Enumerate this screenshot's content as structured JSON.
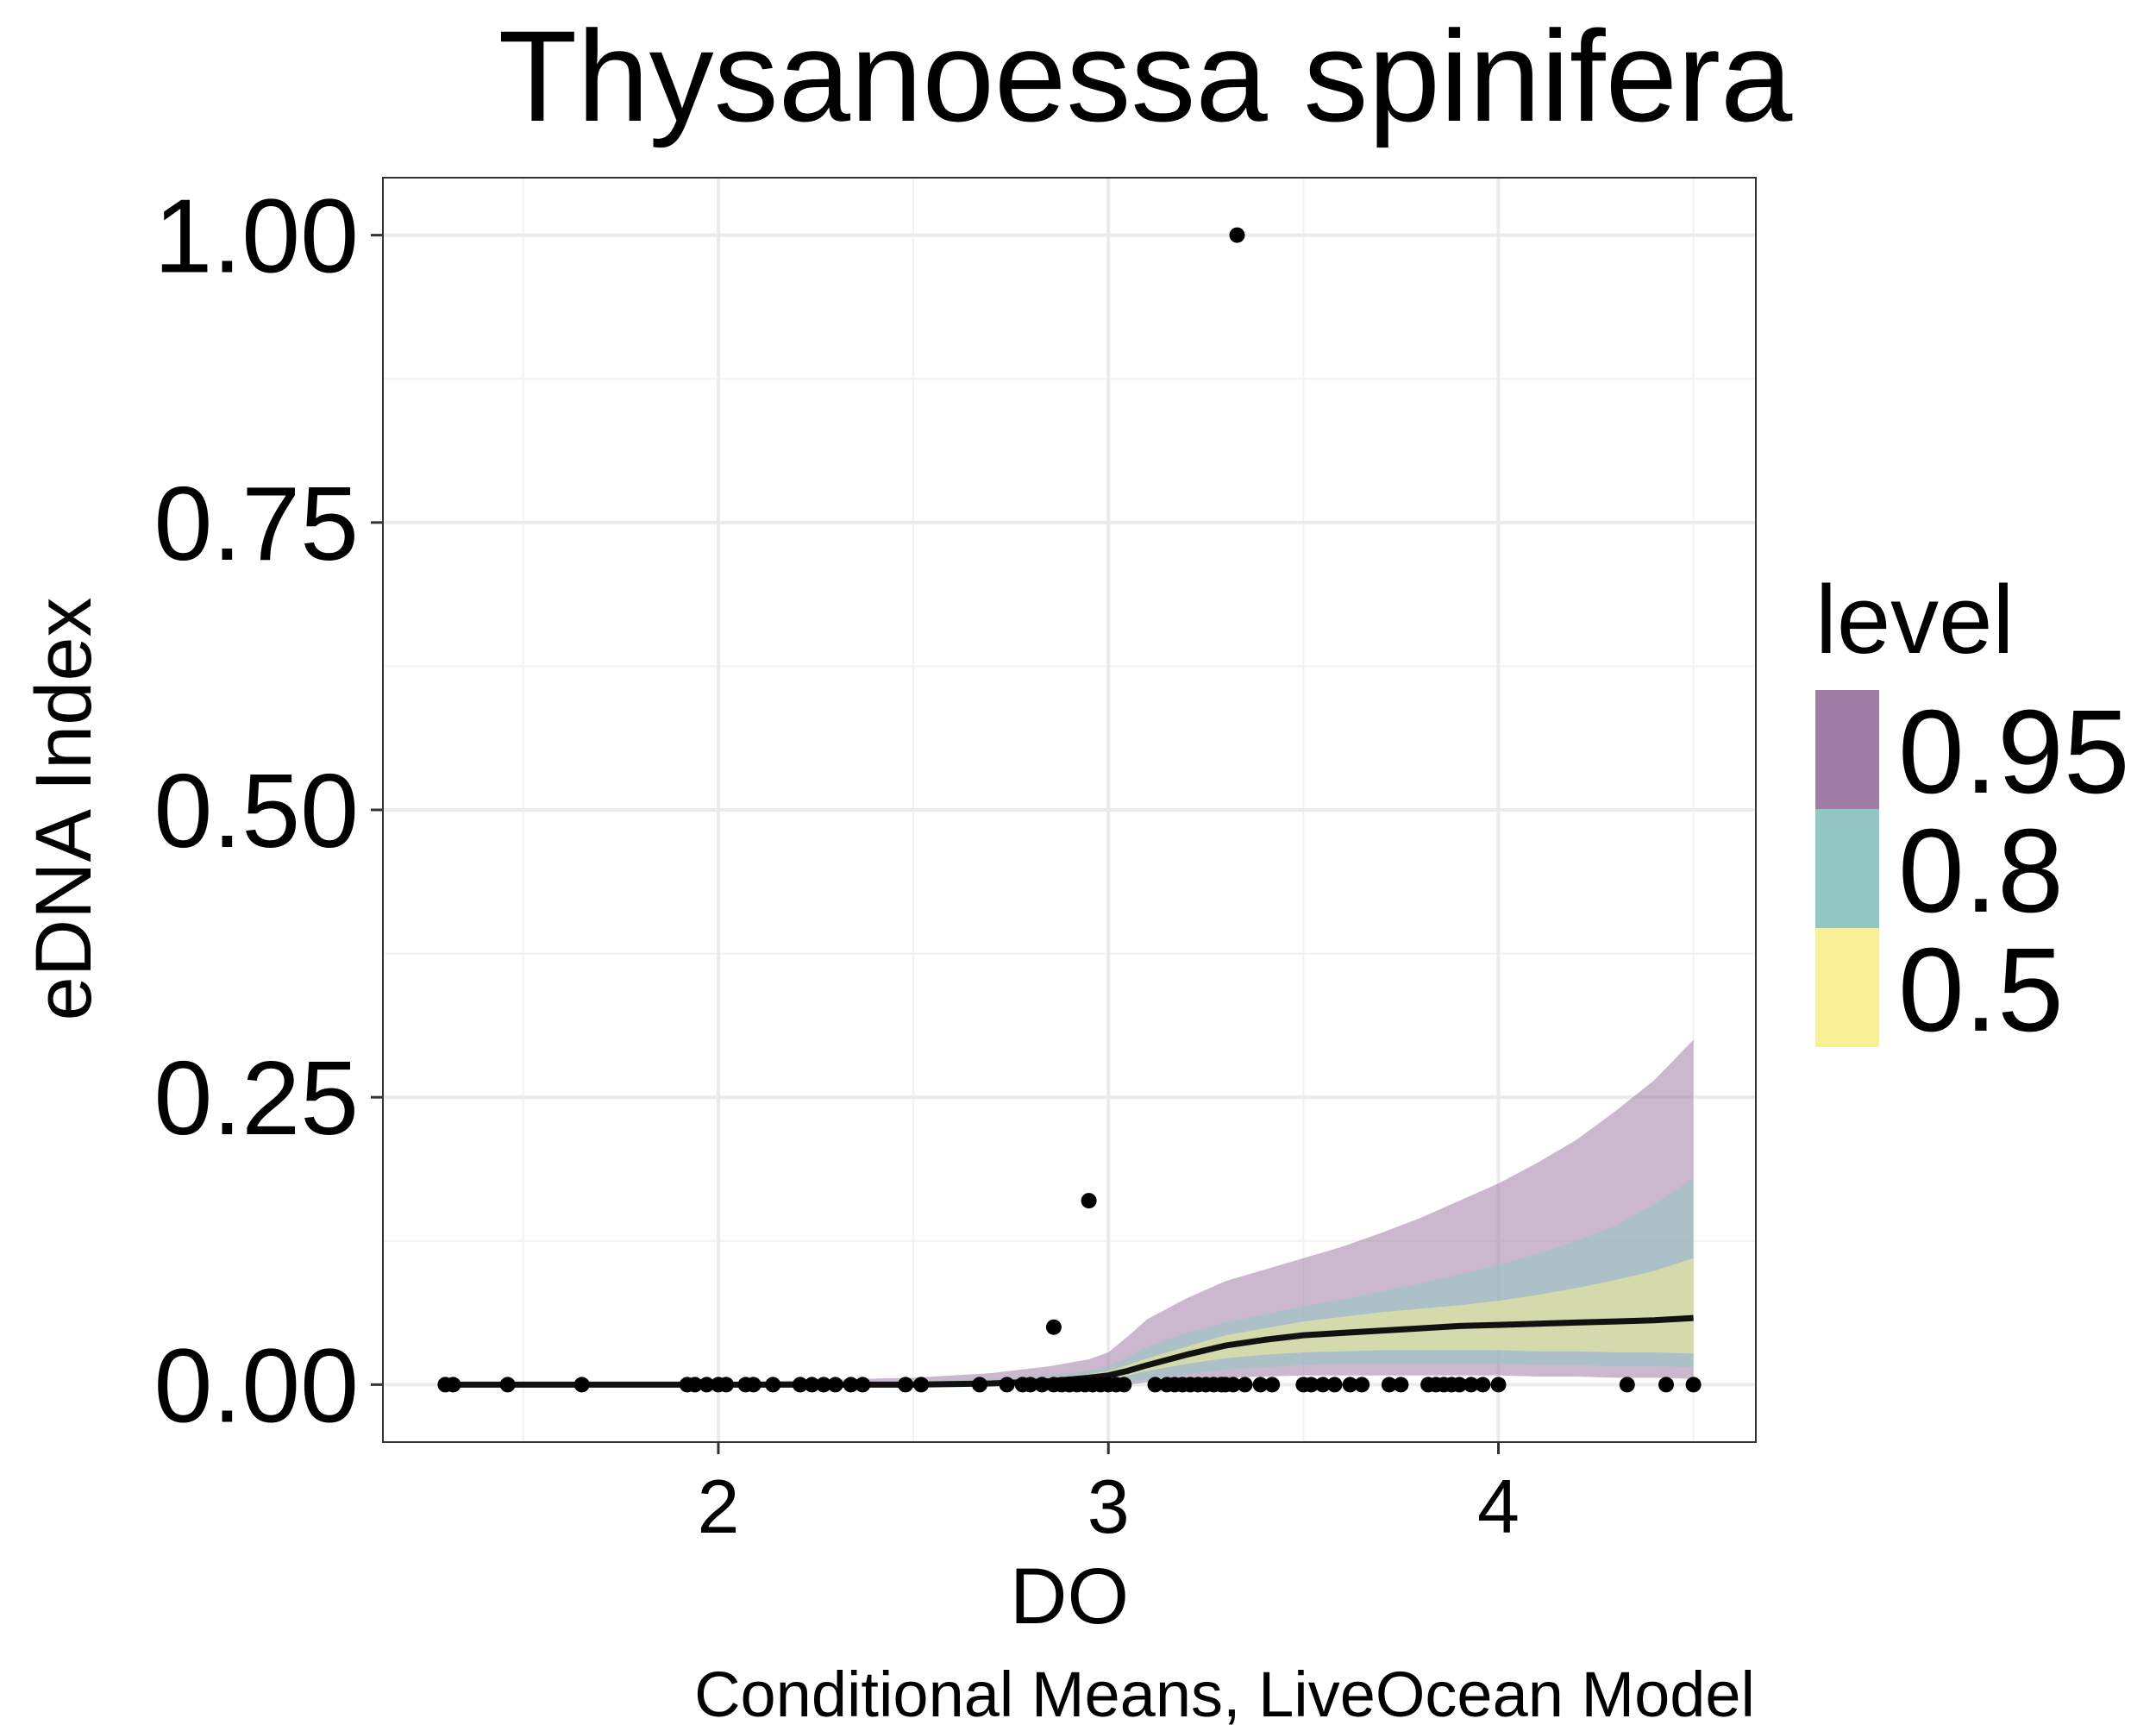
{
  "chart_data": {
    "type": "line",
    "title": "Thysanoessa spinifera",
    "xlabel": "DO",
    "ylabel": "eDNA Index",
    "caption": "Conditional Means, LiveOcean Model",
    "xlim": [
      1.14,
      4.66
    ],
    "ylim": [
      -0.05,
      1.05
    ],
    "x_ticks": [
      {
        "value": 2,
        "label": "2"
      },
      {
        "value": 3,
        "label": "3"
      },
      {
        "value": 4,
        "label": "4"
      }
    ],
    "y_ticks": [
      {
        "value": 0,
        "label": "0.00"
      },
      {
        "value": 0.25,
        "label": "0.25"
      },
      {
        "value": 0.5,
        "label": "0.50"
      },
      {
        "value": 0.75,
        "label": "0.75"
      },
      {
        "value": 1.0,
        "label": "1.00"
      }
    ],
    "grid": true,
    "legend": {
      "title": "level",
      "placement": "right",
      "entries": [
        {
          "label": "0.95",
          "color": "#A07EA7"
        },
        {
          "label": "0.8",
          "color": "#93C7C3"
        },
        {
          "label": "0.5",
          "color": "#F8EF96"
        }
      ]
    },
    "ribbons": [
      {
        "level": "0.95",
        "color": "#A07EA7",
        "x": [
          1.3,
          2.0,
          2.5,
          2.7,
          2.85,
          2.95,
          3.0,
          3.05,
          3.1,
          3.2,
          3.3,
          3.4,
          3.5,
          3.6,
          3.7,
          3.8,
          3.9,
          4.0,
          4.1,
          4.2,
          4.3,
          4.4,
          4.5
        ],
        "lower": [
          0,
          0,
          0,
          0,
          0,
          0,
          0,
          0,
          0.002,
          0.004,
          0.006,
          0.007,
          0.008,
          0.008,
          0.008,
          0.008,
          0.008,
          0.008,
          0.007,
          0.007,
          0.006,
          0.006,
          0.005
        ],
        "upper": [
          0,
          0.002,
          0.006,
          0.01,
          0.016,
          0.022,
          0.028,
          0.042,
          0.057,
          0.075,
          0.09,
          0.1,
          0.11,
          0.12,
          0.132,
          0.145,
          0.16,
          0.175,
          0.193,
          0.213,
          0.238,
          0.265,
          0.3
        ]
      },
      {
        "level": "0.8",
        "color": "#93C7C3",
        "x": [
          1.3,
          2.0,
          2.5,
          2.7,
          2.85,
          2.95,
          3.0,
          3.05,
          3.1,
          3.2,
          3.3,
          3.4,
          3.5,
          3.6,
          3.7,
          3.8,
          3.9,
          4.0,
          4.1,
          4.2,
          4.3,
          4.4,
          4.5
        ],
        "lower": [
          0,
          0,
          0,
          0,
          0,
          0,
          0,
          0.002,
          0.005,
          0.009,
          0.013,
          0.015,
          0.017,
          0.018,
          0.018,
          0.018,
          0.018,
          0.018,
          0.017,
          0.017,
          0.016,
          0.016,
          0.015
        ],
        "upper": [
          0,
          0.001,
          0.003,
          0.005,
          0.008,
          0.012,
          0.016,
          0.024,
          0.033,
          0.045,
          0.054,
          0.061,
          0.068,
          0.074,
          0.081,
          0.088,
          0.096,
          0.104,
          0.114,
          0.125,
          0.138,
          0.157,
          0.18
        ]
      },
      {
        "level": "0.5",
        "color": "#F8EF96",
        "x": [
          1.3,
          2.0,
          2.5,
          2.7,
          2.85,
          2.95,
          3.0,
          3.05,
          3.1,
          3.2,
          3.3,
          3.4,
          3.5,
          3.6,
          3.7,
          3.8,
          3.9,
          4.0,
          4.1,
          4.2,
          4.3,
          4.4,
          4.5
        ],
        "lower": [
          0,
          0,
          0,
          0.001,
          0.002,
          0.004,
          0.005,
          0.008,
          0.012,
          0.018,
          0.023,
          0.026,
          0.028,
          0.029,
          0.03,
          0.03,
          0.03,
          0.03,
          0.029,
          0.029,
          0.028,
          0.028,
          0.027
        ],
        "upper": [
          0,
          0.0005,
          0.002,
          0.003,
          0.006,
          0.009,
          0.012,
          0.017,
          0.023,
          0.033,
          0.043,
          0.049,
          0.055,
          0.059,
          0.063,
          0.066,
          0.069,
          0.073,
          0.078,
          0.084,
          0.091,
          0.099,
          0.11
        ]
      }
    ],
    "series": [
      {
        "x": [
          1.3,
          2.0,
          2.5,
          2.7,
          2.85,
          2.95,
          3.0,
          3.05,
          3.1,
          3.2,
          3.3,
          3.4,
          3.5,
          3.6,
          3.7,
          3.8,
          3.9,
          4.0,
          4.1,
          4.2,
          4.3,
          4.4,
          4.5
        ],
        "values": [
          0,
          0,
          0,
          0.001,
          0.003,
          0.006,
          0.008,
          0.012,
          0.017,
          0.026,
          0.034,
          0.039,
          0.043,
          0.045,
          0.047,
          0.049,
          0.051,
          0.052,
          0.053,
          0.054,
          0.055,
          0.056,
          0.058
        ]
      }
    ],
    "points": {
      "x": [
        1.3,
        1.32,
        1.46,
        1.65,
        1.92,
        1.94,
        1.97,
        2.0,
        2.02,
        2.07,
        2.09,
        2.14,
        2.21,
        2.24,
        2.27,
        2.3,
        2.34,
        2.37,
        2.48,
        2.52,
        2.67,
        2.74,
        2.78,
        2.8,
        2.83,
        2.86,
        2.88,
        2.9,
        2.92,
        2.94,
        2.96,
        2.98,
        3.0,
        3.02,
        3.04,
        3.12,
        3.15,
        3.17,
        3.19,
        3.21,
        3.23,
        3.25,
        3.27,
        3.29,
        3.3,
        3.32,
        3.35,
        3.39,
        3.42,
        3.5,
        3.52,
        3.55,
        3.58,
        3.62,
        3.65,
        3.72,
        3.75,
        3.82,
        3.84,
        3.86,
        3.88,
        3.9,
        3.93,
        3.96,
        4.0,
        4.33,
        4.43,
        4.5,
        2.86,
        2.95,
        3.33
      ],
      "y": [
        0,
        0,
        0,
        0,
        0,
        0,
        0,
        0,
        0,
        0,
        0,
        0,
        0,
        0,
        0,
        0,
        0,
        0,
        0,
        0,
        0,
        0,
        0,
        0,
        0,
        0,
        0,
        0,
        0,
        0,
        0,
        0,
        0,
        0,
        0,
        0,
        0,
        0,
        0,
        0,
        0,
        0,
        0,
        0,
        0,
        0,
        0,
        0,
        0,
        0,
        0,
        0,
        0,
        0,
        0,
        0,
        0,
        0,
        0,
        0,
        0,
        0,
        0,
        0,
        0,
        0,
        0,
        0,
        0.05,
        0.16,
        1.0
      ]
    }
  }
}
